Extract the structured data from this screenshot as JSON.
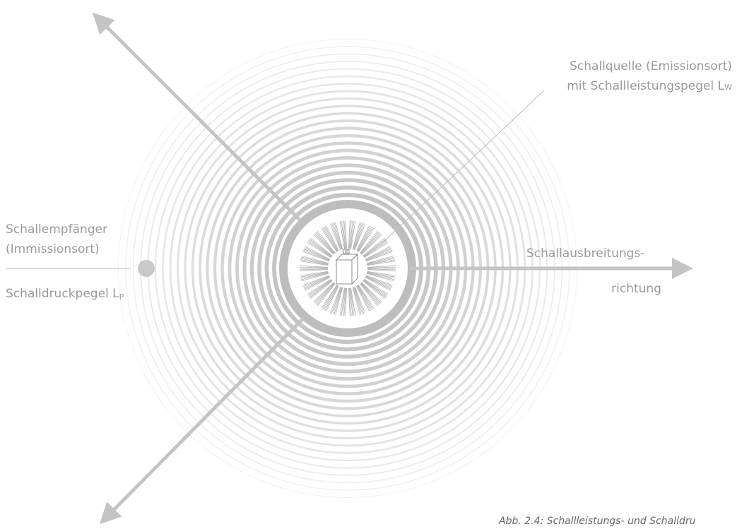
{
  "source": {
    "line1": "Schallquelle (Emissionsort)",
    "line2": "mit Schallleistungspegel L",
    "line2_sub": "W"
  },
  "receiver": {
    "line1": "Schallempfänger",
    "line2": "(Immissionsort)",
    "level": "Schalldruckpegel L",
    "level_sub": "P"
  },
  "direction": {
    "line1": "Schallausbreitungs-",
    "line2": "richtung"
  },
  "caption": "Abb. 2.4: Schallleistungs- und Schalldru"
}
